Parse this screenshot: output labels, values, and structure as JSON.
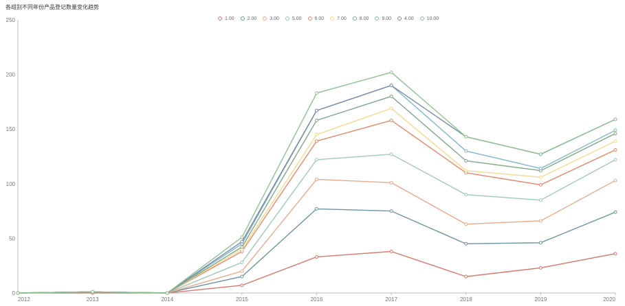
{
  "chart_data": {
    "type": "line",
    "title": "各组别不同年份产品登记数量变化趋势",
    "xlabel": "",
    "ylabel": "",
    "categories": [
      "2012",
      "2013",
      "2014",
      "2015",
      "2016",
      "2017",
      "2018",
      "2019",
      "2020"
    ],
    "ylim": [
      0,
      250
    ],
    "yticks": [
      0,
      50,
      100,
      150,
      200,
      250
    ],
    "grid": false,
    "legend_position": "top-center",
    "series": [
      {
        "name": "1.00",
        "color": "#d9766b",
        "values": [
          0,
          0,
          0,
          7,
          33,
          38,
          15,
          23,
          36
        ]
      },
      {
        "name": "2.00",
        "color": "#6b94a3",
        "values": [
          0,
          1,
          0,
          15,
          77,
          75,
          45,
          46,
          74
        ]
      },
      {
        "name": "3.00",
        "color": "#e9a98a",
        "values": [
          0,
          1,
          0,
          20,
          104,
          101,
          63,
          66,
          103
        ]
      },
      {
        "name": "5.00",
        "color": "#9ccab7",
        "values": [
          0,
          1,
          0,
          28,
          122,
          127,
          90,
          85,
          122
        ]
      },
      {
        "name": "6.00",
        "color": "#e8866c",
        "values": [
          0,
          1,
          0,
          38,
          139,
          158,
          110,
          99,
          131
        ]
      },
      {
        "name": "7.00",
        "color": "#f4da8c",
        "values": [
          0,
          1,
          0,
          40,
          145,
          169,
          112,
          106,
          139
        ]
      },
      {
        "name": "8.00",
        "color": "#7fa889",
        "values": [
          0,
          1,
          0,
          42,
          158,
          180,
          121,
          112,
          146
        ]
      },
      {
        "name": "9.00",
        "color": "#7fb8c8",
        "values": [
          0,
          1,
          0,
          45,
          167,
          190,
          130,
          114,
          149
        ]
      },
      {
        "name": "4.00",
        "color": "#7a89a6",
        "values": [
          0,
          1,
          0,
          47,
          167,
          190,
          143,
          127,
          159
        ]
      },
      {
        "name": "10.00",
        "color": "#8cc28e",
        "values": [
          0,
          1,
          0,
          51,
          183,
          202,
          143,
          127,
          159
        ]
      }
    ]
  }
}
